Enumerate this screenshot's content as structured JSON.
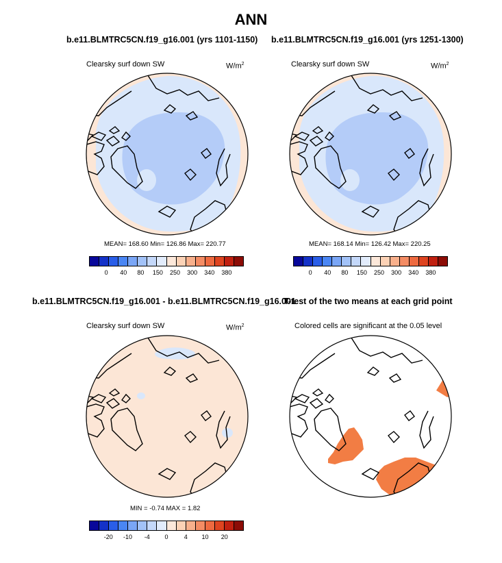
{
  "main_title": "ANN",
  "panels": {
    "p1": {
      "case_title": "b.e11.BLMTRC5CN.f19_g16.001 (yrs 1101-1150)",
      "var_label": "Clearsky surf down SW",
      "units_base": "W/m",
      "units_exp": "2",
      "stats": "MEAN= 168.60  Min= 126.86  Max= 220.77"
    },
    "p2": {
      "case_title": "b.e11.BLMTRC5CN.f19_g16.001 (yrs 1251-1300)",
      "var_label": "Clearsky surf down SW",
      "units_base": "W/m",
      "units_exp": "2",
      "stats": "MEAN= 168.14  Min= 126.42  Max= 220.25"
    },
    "p3": {
      "case_title": "b.e11.BLMTRC5CN.f19_g16.001 - b.e11.BLMTRC5CN.f19_g16.001",
      "var_label": "Clearsky surf down SW",
      "units_base": "W/m",
      "units_exp": "2",
      "stats": "MIN =  -0.74 MAX =   1.82"
    },
    "p4": {
      "case_title": "T-test of the two means at each grid point",
      "note": "Colored cells are significant at the 0.05 level"
    }
  },
  "colorbars": {
    "absolute": {
      "colors": [
        "#08089a",
        "#1432c8",
        "#2a5ee8",
        "#4a86f4",
        "#7aa6f6",
        "#a2c2f8",
        "#c4d8fa",
        "#e2ecfc",
        "#fce8da",
        "#fcd2b6",
        "#f8b08c",
        "#f48c64",
        "#ee6a40",
        "#de4420",
        "#c02010",
        "#8c0c06"
      ],
      "tick_labels": [
        "0",
        "40",
        "80",
        "150",
        "250",
        "300",
        "340",
        "380"
      ]
    },
    "difference": {
      "colors": [
        "#08089a",
        "#1432c8",
        "#2a5ee8",
        "#4a86f4",
        "#7aa6f6",
        "#a2c2f8",
        "#c4d8fa",
        "#e2ecfc",
        "#fce8da",
        "#fcd2b6",
        "#f8b08c",
        "#f48c64",
        "#ee6a40",
        "#de4420",
        "#c02010",
        "#8c0c06"
      ],
      "tick_labels": [
        "-20",
        "-10",
        "-4",
        "0",
        "4",
        "10",
        "20"
      ]
    }
  },
  "map_colors": {
    "pole_blue": "#b4ccf8",
    "mid_blue": "#d9e7fb",
    "peach": "#fce6d6",
    "significant": "#f27d44",
    "coast": "#000000"
  }
}
